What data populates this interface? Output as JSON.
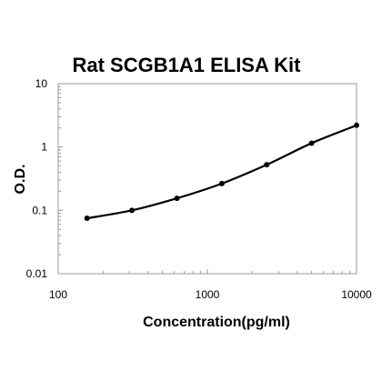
{
  "chart_data": {
    "type": "line",
    "title": "Rat SCGB1A1 ELISA Kit",
    "xlabel": "Concentration(pg/ml)",
    "ylabel": "O.D.",
    "x_scale": "log",
    "y_scale": "log",
    "xlim": [
      100,
      10000
    ],
    "ylim": [
      0.01,
      10
    ],
    "x_ticks": [
      "100",
      "1000",
      "10000"
    ],
    "y_ticks": [
      "10",
      "1",
      "0.1",
      "0.01"
    ],
    "grid": false,
    "legend": "none",
    "line_color": "#000000",
    "series": [
      {
        "x": [
          156,
          312,
          625,
          1250,
          2500,
          5000,
          10000
        ],
        "y": [
          0.075,
          0.1,
          0.155,
          0.265,
          0.525,
          1.15,
          2.2
        ]
      }
    ]
  }
}
